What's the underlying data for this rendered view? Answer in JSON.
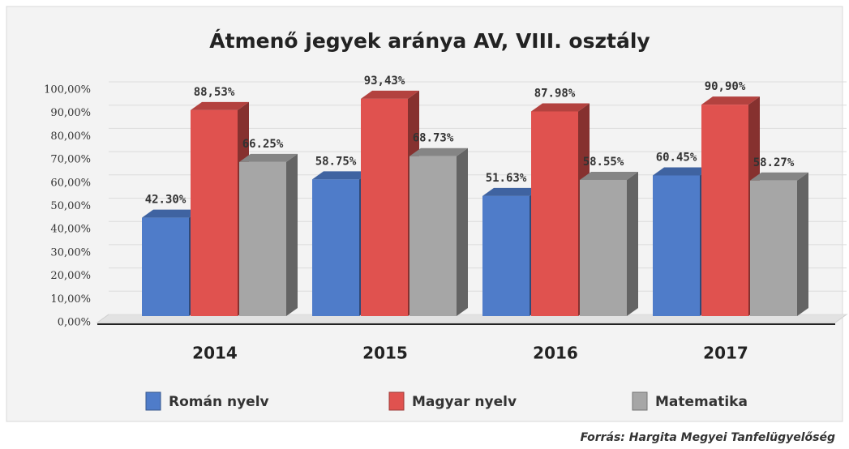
{
  "chart_data": {
    "type": "bar",
    "title": "Átmenő jegyek aránya AV, VIII. osztály",
    "categories": [
      "2014",
      "2015",
      "2016",
      "2017"
    ],
    "series": [
      {
        "name": "Román nyelv",
        "color": "#4f7cc9",
        "values": [
          42.3,
          58.75,
          51.63,
          60.45
        ],
        "value_labels": [
          "42.30%",
          "58.75%",
          "51.63%",
          "60.45%"
        ]
      },
      {
        "name": "Magyar nyelv",
        "color": "#e0524f",
        "values": [
          88.53,
          93.43,
          87.98,
          90.9
        ],
        "value_labels": [
          "88,53%",
          "93,43%",
          "87.98%",
          "90,90%"
        ]
      },
      {
        "name": "Matematika",
        "color": "#a6a6a6",
        "values": [
          66.25,
          68.73,
          58.55,
          58.27
        ],
        "value_labels": [
          "66.25%",
          "68.73%",
          "58.55%",
          "58.27%"
        ]
      }
    ],
    "ylim": [
      0,
      100
    ],
    "yticks": [
      {
        "value": 0,
        "label": "0,00%"
      },
      {
        "value": 10,
        "label": "10,00%"
      },
      {
        "value": 20,
        "label": "20,00%"
      },
      {
        "value": 30,
        "label": "30,00%"
      },
      {
        "value": 40,
        "label": "40,00%"
      },
      {
        "value": 50,
        "label": "50,00%"
      },
      {
        "value": 60,
        "label": "60,00%"
      },
      {
        "value": 70,
        "label": "70,00%"
      },
      {
        "value": 80,
        "label": "80,00%"
      },
      {
        "value": 90,
        "label": "90,00%"
      },
      {
        "value": 100,
        "label": "100,00%"
      }
    ],
    "grid": true,
    "legend": "bottom",
    "source": "Forrás: Hargita Megyei Tanfelügyelőség"
  }
}
